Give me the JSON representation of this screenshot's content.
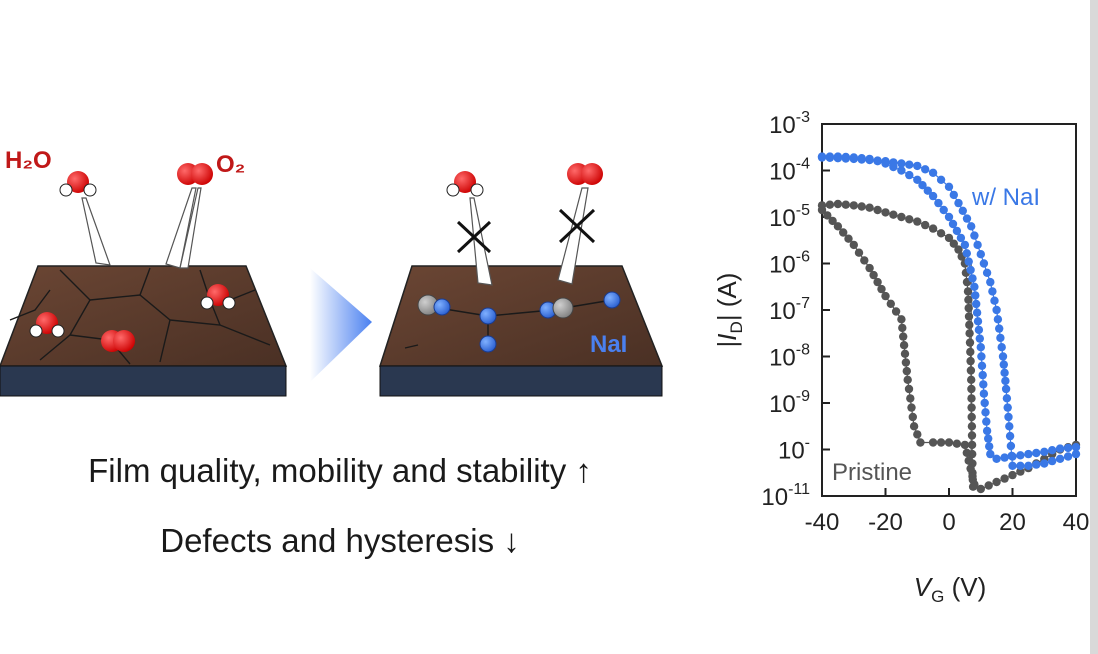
{
  "labels": {
    "h2o": "H₂O",
    "o2": "O₂",
    "nai": "NaI"
  },
  "captions": {
    "line1": "Film quality, mobility and stability ↑",
    "line2": "Defects and hysteresis ↓"
  },
  "colors": {
    "oxygen": "#e01010",
    "hydrogen": "#ffffff",
    "sodium_iodide_blue": "#3a78e6",
    "grey_atom": "#9a9a9a",
    "film_brown": "#5a3a2c",
    "substrate": "#2a3850",
    "pristine_series": "#555555",
    "nai_series": "#3a78e6",
    "arrow_gradient": "#4a80f0"
  },
  "chart_data": {
    "type": "scatter",
    "xlabel": "V_G (V)",
    "ylabel": "|I_D| (A)",
    "x_ticks": [
      "-40",
      "-20",
      "0",
      "20",
      "40"
    ],
    "y_ticks": [
      "10-3",
      "10-4",
      "10-5",
      "10-6",
      "10-7",
      "10-8",
      "10-9",
      "10-10",
      "10-11"
    ],
    "xlim": [
      -40,
      40
    ],
    "ylim_log10": [
      -11,
      -3
    ],
    "y_scale": "log",
    "series": [
      {
        "name": "Pristine",
        "forward": [
          [
            -40,
            -4.75
          ],
          [
            -35,
            -4.72
          ],
          [
            -30,
            -4.75
          ],
          [
            -25,
            -4.8
          ],
          [
            -20,
            -4.9
          ],
          [
            -15,
            -5.0
          ],
          [
            -10,
            -5.1
          ],
          [
            -5,
            -5.25
          ],
          [
            0,
            -5.45
          ],
          [
            3,
            -5.7
          ],
          [
            5,
            -6.0
          ],
          [
            6,
            -6.6
          ],
          [
            6.5,
            -7.5
          ],
          [
            7,
            -8.5
          ],
          [
            7.2,
            -9.5
          ],
          [
            7.4,
            -10.5
          ],
          [
            7.6,
            -10.8
          ]
        ],
        "reverse": [
          [
            40,
            -9.9
          ],
          [
            35,
            -10.0
          ],
          [
            30,
            -10.2
          ],
          [
            25,
            -10.4
          ],
          [
            20,
            -10.55
          ],
          [
            15,
            -10.7
          ],
          [
            10,
            -10.85
          ],
          [
            8,
            -10.75
          ],
          [
            5,
            -9.9
          ],
          [
            0,
            -9.85
          ],
          [
            -5,
            -9.85
          ],
          [
            -9,
            -9.85
          ],
          [
            -11,
            -9.5
          ],
          [
            -13,
            -8.5
          ],
          [
            -15,
            -7.2
          ],
          [
            -20,
            -6.7
          ],
          [
            -25,
            -6.1
          ],
          [
            -30,
            -5.6
          ],
          [
            -35,
            -5.2
          ],
          [
            -40,
            -4.85
          ]
        ]
      },
      {
        "name": "w/ NaI",
        "forward": [
          [
            -40,
            -3.7
          ],
          [
            -35,
            -3.7
          ],
          [
            -30,
            -3.72
          ],
          [
            -25,
            -3.75
          ],
          [
            -20,
            -3.85
          ],
          [
            -15,
            -4.0
          ],
          [
            -10,
            -4.2
          ],
          [
            -5,
            -4.55
          ],
          [
            0,
            -5.0
          ],
          [
            5,
            -5.6
          ],
          [
            8,
            -6.5
          ],
          [
            10,
            -7.8
          ],
          [
            11,
            -8.8
          ],
          [
            12,
            -9.6
          ],
          [
            13,
            -10.1
          ],
          [
            15,
            -10.2
          ],
          [
            20,
            -10.15
          ],
          [
            25,
            -10.1
          ],
          [
            30,
            -10.05
          ],
          [
            35,
            -9.98
          ],
          [
            40,
            -9.95
          ]
        ],
        "reverse": [
          [
            40,
            -10.1
          ],
          [
            35,
            -10.2
          ],
          [
            30,
            -10.3
          ],
          [
            25,
            -10.35
          ],
          [
            20,
            -10.35
          ],
          [
            19,
            -9.5
          ],
          [
            18,
            -8.7
          ],
          [
            17,
            -8.0
          ],
          [
            15,
            -7.0
          ],
          [
            13,
            -6.4
          ],
          [
            10,
            -5.8
          ],
          [
            7,
            -5.2
          ],
          [
            3,
            -4.7
          ],
          [
            0,
            -4.35
          ],
          [
            -5,
            -4.05
          ],
          [
            -10,
            -3.9
          ],
          [
            -20,
            -3.8
          ],
          [
            -30,
            -3.75
          ],
          [
            -40,
            -3.72
          ]
        ]
      }
    ],
    "annotations": [
      "w/ NaI",
      "Pristine"
    ],
    "vline_x": 7,
    "grid": false
  }
}
